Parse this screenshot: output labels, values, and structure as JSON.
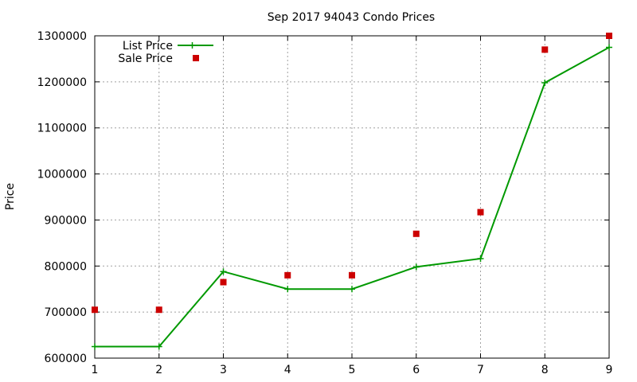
{
  "chart_data": {
    "type": "line",
    "title": "Sep 2017 94043 Condo Prices",
    "xlabel": "",
    "ylabel": "Price",
    "x": [
      1,
      2,
      3,
      4,
      5,
      6,
      7,
      8,
      9
    ],
    "xlim": [
      1,
      9
    ],
    "ylim": [
      600000,
      1300000
    ],
    "xticks": [
      "1",
      "2",
      "3",
      "4",
      "5",
      "6",
      "7",
      "8",
      "9"
    ],
    "yticks": [
      "600000",
      "700000",
      "800000",
      "900000",
      "1000000",
      "1100000",
      "1200000",
      "1300000"
    ],
    "grid": true,
    "legend_position": "top-left",
    "series": [
      {
        "name": "List Price",
        "style": "line-with-plus-markers",
        "color": "#009900",
        "values": [
          625000,
          625000,
          788000,
          750000,
          750000,
          798000,
          816000,
          1198000,
          1275000
        ]
      },
      {
        "name": "Sale Price",
        "style": "square-markers",
        "color": "#cc0000",
        "values": [
          705000,
          705000,
          765000,
          780000,
          780000,
          870000,
          917000,
          1270000,
          1300000
        ]
      }
    ]
  }
}
